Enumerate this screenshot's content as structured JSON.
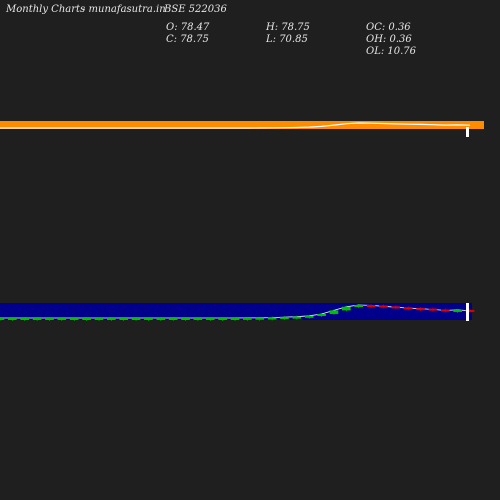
{
  "header": {
    "chart_type_label": "Monthly Charts",
    "source": "- munafasutra.in",
    "symbol": "BSE 522036"
  },
  "ohlc": {
    "open": "O: 78.47",
    "high": "H: 78.75",
    "oc": "OC: 0.36",
    "close": "C: 78.75",
    "low": "L: 70.85",
    "oh": "OH: 0.36",
    "ol": "OL: 10.76"
  },
  "colors": {
    "background": "#1f1f1f",
    "orange": "#ff8c00",
    "price_band": "#00008b",
    "up": "#00c000",
    "down": "#e00000",
    "line": "#ffffff"
  },
  "chart_data": {
    "type": "line",
    "title": "",
    "panels": [
      "price-overview",
      "candlestick"
    ],
    "series": [
      {
        "values": [
          3,
          3,
          3,
          3,
          3,
          3,
          3,
          3,
          3,
          3,
          3,
          3,
          3,
          3,
          3,
          3,
          3,
          3,
          3,
          3,
          3.2,
          3.5,
          4,
          5,
          6,
          8,
          12,
          20,
          28,
          32,
          31,
          29,
          27,
          25,
          24,
          22,
          20,
          21,
          19
        ]
      }
    ],
    "right_tick_labels": [
      "",
      "",
      "",
      ""
    ]
  }
}
